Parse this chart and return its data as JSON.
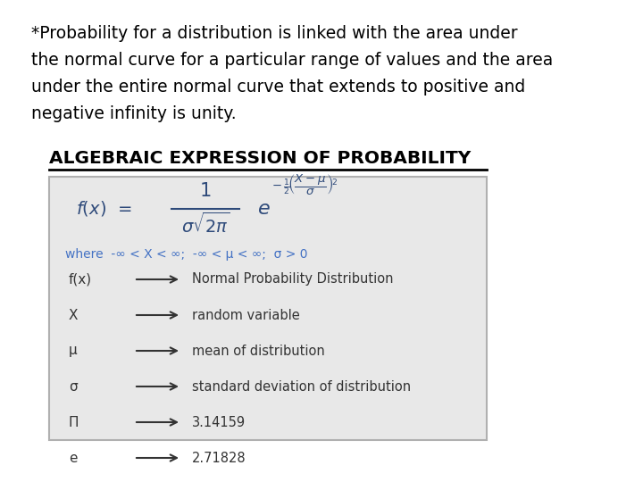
{
  "bg_color": "#ffffff",
  "paragraph_lines": [
    "*Probability for a distribution is linked with the area under",
    "the normal curve for a particular range of values and the area",
    "under the entire normal curve that extends to positive and",
    "negative infinity is unity."
  ],
  "heading_text": "ALGEBRAIC EXPRESSION OF PROBABILITY",
  "box_bg": "#e8e8e8",
  "box_border": "#b0b0b0",
  "where_text": "where  -∞ < X < ∞;  -∞ < μ < ∞;  σ > 0",
  "rows": [
    [
      "f(x)",
      "Normal Probability Distribution"
    ],
    [
      "X",
      "random variable"
    ],
    [
      "μ",
      "mean of distribution"
    ],
    [
      "σ",
      "standard deviation of distribution"
    ],
    [
      "Π",
      "3.14159"
    ],
    [
      "e",
      "2.71828"
    ]
  ],
  "text_color": "#000000",
  "heading_color": "#000000",
  "formula_color": "#2e4a7a",
  "where_color": "#4472c4",
  "row_symbol_color": "#333333",
  "row_text_color": "#333333",
  "para_fontsize": 13.5,
  "heading_fontsize": 14.5,
  "formula_fontsize": 14,
  "where_fontsize": 10,
  "row_fontsize": 11
}
